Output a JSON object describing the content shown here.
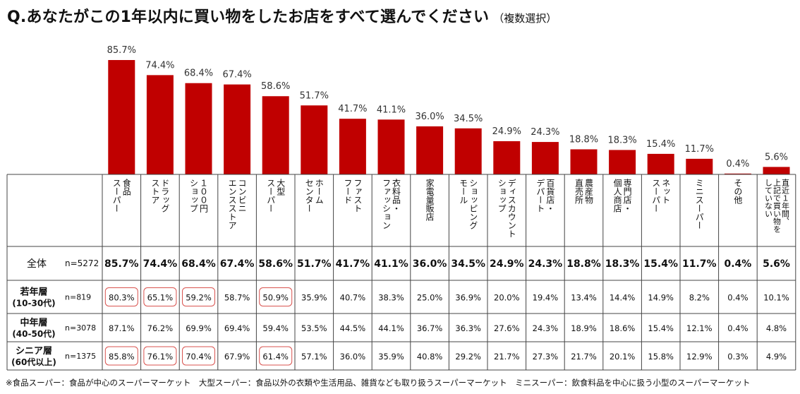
{
  "title": "Q.あなたがこの1年以内に買い物をしたお店をすべて選んでください",
  "subtitle": "（複数選択）",
  "footnote": "※食品スーパー：食品が中心のスーパーマーケット　大型スーパー：食品以外の衣類や生活用品、雑貨なども取り扱うスーパーマーケット　ミニスーパー：飲食料品を中心に扱う小型のスーパーマーケット",
  "colors": {
    "bar": "#c00000",
    "grid": "#444444",
    "highlight": "#d9534f"
  },
  "chart_data": {
    "type": "bar",
    "title": "Q.あなたがこの1年以内に買い物をしたお店をすべて選んでください（複数選択）",
    "unit": "%",
    "ylim": [
      0,
      100
    ],
    "categories": [
      [
        "食品",
        "スーパー"
      ],
      [
        "ドラッグ",
        "ストア"
      ],
      [
        "１００円",
        "ショップ"
      ],
      [
        "コンビニ",
        "エンスストア"
      ],
      [
        "大型",
        "スーパー"
      ],
      [
        "ホーム",
        "センター"
      ],
      [
        "ファスト",
        "フード"
      ],
      [
        "衣料品・",
        "ファッション"
      ],
      [
        "家電量販店"
      ],
      [
        "ショッピング",
        "モール"
      ],
      [
        "ディスカウント",
        "ショップ"
      ],
      [
        "百貨店・",
        "デパート"
      ],
      [
        "農産物",
        "直売所"
      ],
      [
        "専門店・",
        "個人商店"
      ],
      [
        "ネット",
        "スーパー"
      ],
      [
        "ミニスーパー"
      ],
      [
        "その他"
      ],
      [
        "直近１年間、",
        "上記で買い物を",
        "していない"
      ]
    ],
    "values": [
      85.7,
      74.4,
      68.4,
      67.4,
      58.6,
      51.7,
      41.7,
      41.1,
      36.0,
      34.5,
      24.9,
      24.3,
      18.8,
      18.3,
      15.4,
      11.7,
      0.4,
      5.6
    ],
    "bar_labels": [
      "85.7%",
      "74.4%",
      "68.4%",
      "67.4%",
      "58.6%",
      "51.7%",
      "41.7%",
      "41.1%",
      "36.0%",
      "34.5%",
      "24.9%",
      "24.3%",
      "18.8%",
      "18.3%",
      "15.4%",
      "11.7%",
      "0.4%",
      "5.6%"
    ],
    "table": {
      "rows": [
        {
          "label": [
            "全体"
          ],
          "n": "n=5272",
          "bold": true,
          "values": [
            "85.7%",
            "74.4%",
            "68.4%",
            "67.4%",
            "58.6%",
            "51.7%",
            "41.7%",
            "41.1%",
            "36.0%",
            "34.5%",
            "24.9%",
            "24.3%",
            "18.8%",
            "18.3%",
            "15.4%",
            "11.7%",
            "0.4%",
            "5.6%"
          ],
          "highlight": []
        },
        {
          "label": [
            "若年層",
            "(10-30代)"
          ],
          "n": "n=819",
          "bold": false,
          "values": [
            "80.3%",
            "65.1%",
            "59.2%",
            "58.7%",
            "50.9%",
            "35.9%",
            "40.7%",
            "38.3%",
            "25.0%",
            "36.9%",
            "20.0%",
            "19.4%",
            "13.4%",
            "14.4%",
            "14.9%",
            "8.2%",
            "0.4%",
            "10.1%"
          ],
          "highlight": [
            0,
            1,
            2,
            4
          ]
        },
        {
          "label": [
            "中年層",
            "(40-50代)"
          ],
          "n": "n=3078",
          "bold": false,
          "values": [
            "87.1%",
            "76.2%",
            "69.9%",
            "69.4%",
            "59.4%",
            "53.5%",
            "44.5%",
            "44.1%",
            "36.7%",
            "36.3%",
            "27.6%",
            "24.3%",
            "18.9%",
            "18.6%",
            "15.4%",
            "12.1%",
            "0.4%",
            "4.8%"
          ],
          "highlight": []
        },
        {
          "label": [
            "シニア層",
            "(60代以上)"
          ],
          "n": "n=1375",
          "bold": false,
          "values": [
            "85.8%",
            "76.1%",
            "70.4%",
            "67.9%",
            "61.4%",
            "57.1%",
            "36.0%",
            "35.9%",
            "40.8%",
            "29.2%",
            "21.7%",
            "27.3%",
            "21.7%",
            "20.1%",
            "15.8%",
            "12.9%",
            "0.3%",
            "4.9%"
          ],
          "highlight": [
            0,
            1,
            2,
            4
          ]
        }
      ]
    }
  }
}
